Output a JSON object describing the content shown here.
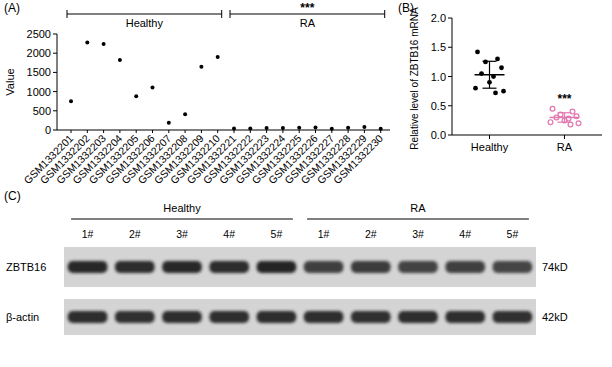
{
  "chart_data": [
    {
      "type": "dot",
      "panel": "(A)",
      "y_label": "Value",
      "categories": [
        "GSM1332201",
        "GSM1332202",
        "GSM1332203",
        "GSM1332204",
        "GSM1332205",
        "GSM1332206",
        "GSM1332207",
        "GSM1332208",
        "GSM1332209",
        "GSM1332210",
        "GSM1332221",
        "GSM1332222",
        "GSM1332223",
        "GSM1332224",
        "GSM1332225",
        "GSM1332226",
        "GSM1332227",
        "GSM1332228",
        "GSM1332229",
        "GSM1332230"
      ],
      "values": [
        750,
        2280,
        2240,
        1820,
        880,
        1110,
        190,
        410,
        1650,
        1900,
        40,
        40,
        55,
        55,
        60,
        65,
        30,
        60,
        80,
        30
      ],
      "color": "#000000",
      "ylim": [
        0,
        2500
      ],
      "yticks": [
        0,
        500,
        1000,
        1500,
        2000,
        2500
      ],
      "groups": [
        {
          "label": "Healthy",
          "from": "GSM1332201",
          "to": "GSM1332210"
        },
        {
          "label": "RA",
          "from": "GSM1332221",
          "to": "GSM1332230",
          "annotation": "***"
        }
      ]
    },
    {
      "type": "dot",
      "panel": "(B)",
      "y_label": "Relative level of ZBTB16 mRNA",
      "categories": [
        "Healthy",
        "RA"
      ],
      "values": [
        1.03,
        0.3
      ],
      "errors": [
        0.23,
        0.08
      ],
      "points": [
        [
          1.42,
          1.3,
          1.25,
          1.15,
          1.05,
          1.0,
          0.9,
          0.8,
          0.75,
          0.72
        ],
        [
          0.45,
          0.4,
          0.35,
          0.32,
          0.3,
          0.28,
          0.25,
          0.22,
          0.2,
          0.18
        ]
      ],
      "colors": [
        "#000000",
        "#e377b0"
      ],
      "ylim": [
        0,
        2
      ],
      "yticks": [
        {
          "value": 0,
          "label": "0.0"
        },
        0.5,
        {
          "value": 1,
          "label": "1.0"
        },
        1.5,
        {
          "value": 2,
          "label": "2.0"
        }
      ],
      "annotations": [
        {
          "text": "***",
          "category": "RA"
        }
      ]
    },
    {
      "type": "western_blot",
      "panel": "(C)",
      "groups": [
        {
          "label": "Healthy",
          "lanes": [
            "1#",
            "2#",
            "3#",
            "4#",
            "5#"
          ]
        },
        {
          "label": "RA",
          "lanes": [
            "1#",
            "2#",
            "3#",
            "4#",
            "5#"
          ]
        }
      ],
      "series": [
        {
          "name": "ZBTB16",
          "size": "74kD",
          "values": [
            0.9,
            0.88,
            0.9,
            0.88,
            0.92,
            0.78,
            0.8,
            0.76,
            0.78,
            0.75
          ]
        },
        {
          "name": "β-actin",
          "size": "42kD",
          "values": [
            0.88,
            0.86,
            0.88,
            0.87,
            0.88,
            0.87,
            0.86,
            0.88,
            0.87,
            0.86
          ]
        }
      ]
    }
  ]
}
